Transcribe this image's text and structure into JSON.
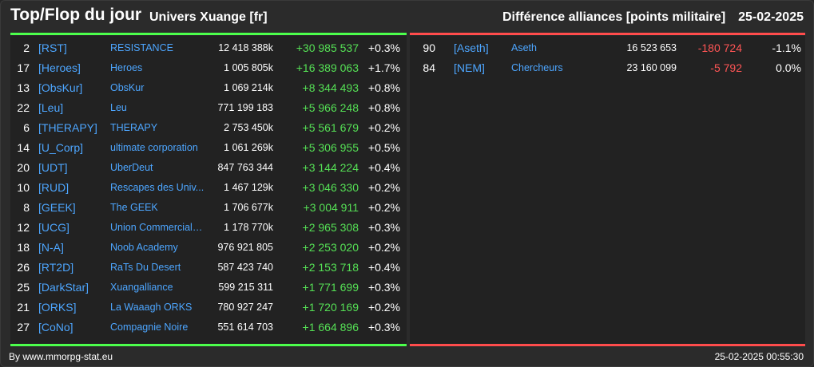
{
  "header": {
    "title": "Top/Flop du jour",
    "subtitle": "Univers Xuange [fr]",
    "right_title": "Différence alliances [points militaire]",
    "date": "25-02-2025"
  },
  "colors": {
    "positive": "#55e055",
    "negative": "#ff5555",
    "link": "#4da6ff",
    "top_line": "#4cff4c",
    "flop_line": "#ff4c4c"
  },
  "top": [
    {
      "rank": "2",
      "tag": "[RST]",
      "name": "RESISTANCE",
      "points": "12 418 388k",
      "diff": "+30 985 537",
      "pct": "+0.3%"
    },
    {
      "rank": "17",
      "tag": "[Heroes]",
      "name": "Heroes",
      "points": "1 005 805k",
      "diff": "+16 389 063",
      "pct": "+1.7%"
    },
    {
      "rank": "13",
      "tag": "[ObsKur]",
      "name": "ObsKur",
      "points": "1 069 214k",
      "diff": "+8 344 493",
      "pct": "+0.8%"
    },
    {
      "rank": "22",
      "tag": "[Leu]",
      "name": "Leu",
      "points": "771 199 183",
      "diff": "+5 966 248",
      "pct": "+0.8%"
    },
    {
      "rank": "6",
      "tag": "[THERAPY]",
      "name": "THERAPY",
      "points": "2 753 450k",
      "diff": "+5 561 679",
      "pct": "+0.2%"
    },
    {
      "rank": "14",
      "tag": "[U_Corp]",
      "name": "ultimate corporation",
      "points": "1 061 269k",
      "diff": "+5 306 955",
      "pct": "+0.5%"
    },
    {
      "rank": "20",
      "tag": "[UDT]",
      "name": "UberDeut",
      "points": "847 763 344",
      "diff": "+3 144 224",
      "pct": "+0.4%"
    },
    {
      "rank": "10",
      "tag": "[RUD]",
      "name": "Rescapes des Univ...",
      "points": "1 467 129k",
      "diff": "+3 046 330",
      "pct": "+0.2%"
    },
    {
      "rank": "8",
      "tag": "[GEEK]",
      "name": "The GEEK",
      "points": "1 706 677k",
      "diff": "+3 004 911",
      "pct": "+0.2%"
    },
    {
      "rank": "12",
      "tag": "[UCG]",
      "name": "Union Commerciale...",
      "points": "1 178 770k",
      "diff": "+2 965 308",
      "pct": "+0.3%"
    },
    {
      "rank": "18",
      "tag": "[N-A]",
      "name": "Noob Academy",
      "points": "976 921 805",
      "diff": "+2 253 020",
      "pct": "+0.2%"
    },
    {
      "rank": "26",
      "tag": "[RT2D]",
      "name": "RaTs Du Desert",
      "points": "587 423 740",
      "diff": "+2 153 718",
      "pct": "+0.4%"
    },
    {
      "rank": "25",
      "tag": "[DarkStar]",
      "name": "Xuangalliance",
      "points": "599 215 311",
      "diff": "+1 771 699",
      "pct": "+0.3%"
    },
    {
      "rank": "21",
      "tag": "[ORKS]",
      "name": "La Waaagh ORKS",
      "points": "780 927 247",
      "diff": "+1 720 169",
      "pct": "+0.2%"
    },
    {
      "rank": "27",
      "tag": "[CoNo]",
      "name": "Compagnie Noire",
      "points": "551 614 703",
      "diff": "+1 664 896",
      "pct": "+0.3%"
    }
  ],
  "flop": [
    {
      "rank": "90",
      "tag": "[Aseth]",
      "name": "Aseth",
      "points": "16 523 653",
      "diff": "-180 724",
      "pct": "-1.1%"
    },
    {
      "rank": "84",
      "tag": "[NEM]",
      "name": "Chercheurs",
      "points": "23 160 099",
      "diff": "-5 792",
      "pct": "0.0%"
    }
  ],
  "footer": {
    "source": "By www.mmorpg-stat.eu",
    "timestamp": "25-02-2025 00:55:30"
  }
}
